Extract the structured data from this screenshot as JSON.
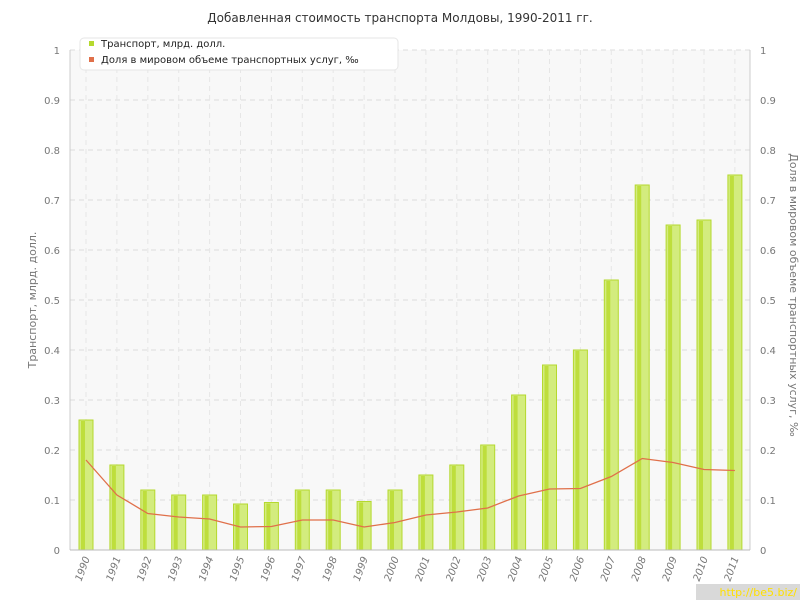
{
  "chart_data": {
    "type": "bar",
    "title": "Добавленная стоимость транспорта Молдовы, 1990-2011 гг.",
    "categories": [
      "1990",
      "1991",
      "1992",
      "1993",
      "1994",
      "1995",
      "1996",
      "1997",
      "1998",
      "1999",
      "2000",
      "2001",
      "2002",
      "2003",
      "2004",
      "2005",
      "2006",
      "2007",
      "2008",
      "2009",
      "2010",
      "2011"
    ],
    "series": [
      {
        "name": "Транспорт, млрд. долл.",
        "type": "bar",
        "axis": "left",
        "color": "#b5d92e",
        "values": [
          0.26,
          0.17,
          0.12,
          0.11,
          0.11,
          0.092,
          0.095,
          0.12,
          0.12,
          0.097,
          0.12,
          0.15,
          0.17,
          0.21,
          0.31,
          0.37,
          0.4,
          0.54,
          0.73,
          0.65,
          0.66,
          0.75
        ]
      },
      {
        "name": "Доля в мировом объеме транспортных услуг, ‰",
        "type": "line",
        "axis": "right",
        "color": "#e0704a",
        "values": [
          0.18,
          0.11,
          0.073,
          0.066,
          0.062,
          0.046,
          0.047,
          0.06,
          0.06,
          0.046,
          0.055,
          0.07,
          0.076,
          0.084,
          0.108,
          0.122,
          0.123,
          0.147,
          0.183,
          0.175,
          0.161,
          0.159
        ]
      }
    ],
    "ylabel": "Транспорт, млрд. долл.",
    "ylabel_right": "Доля в мировом объеме транспортных услуг, ‰",
    "ylim": [
      0,
      1
    ],
    "ylim_right": [
      0,
      1
    ],
    "yticks": [
      "0",
      "0.1",
      "0.2",
      "0.3",
      "0.4",
      "0.5",
      "0.6",
      "0.7",
      "0.8",
      "0.9",
      "1"
    ],
    "grid": true,
    "legend_position": "top-left"
  },
  "watermark": "http://be5.biz/"
}
